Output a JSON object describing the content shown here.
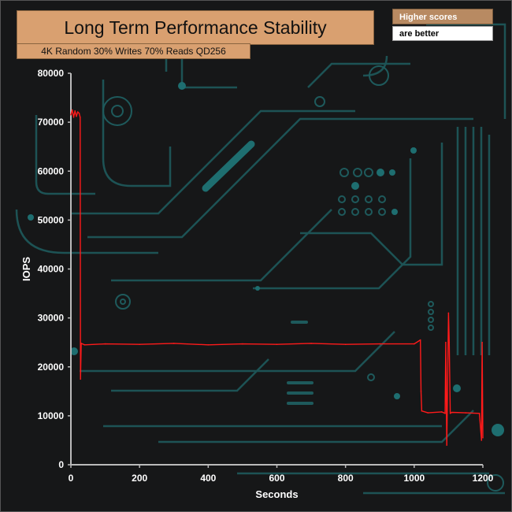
{
  "title": "Long Term Performance Stability",
  "subtitle": "4K Random 30% Writes 70% Reads QD256",
  "note": {
    "line1": "Higher scores",
    "line2": "are better"
  },
  "colors": {
    "series": "#ff1a1a",
    "axis": "#bbbbbb",
    "header_bg": "#d9a070",
    "note_bg": "#b88a62",
    "circuit": "#1e5a5c"
  },
  "chart_data": {
    "type": "line",
    "title": "Long Term Performance Stability",
    "subtitle": "4K Random 30% Writes 70% Reads QD256",
    "xlabel": "Seconds",
    "ylabel": "IOPS",
    "xlim": [
      0,
      1200
    ],
    "ylim": [
      0,
      80000
    ],
    "x_ticks": [
      0,
      200,
      400,
      600,
      800,
      1000,
      1200
    ],
    "y_ticks": [
      0,
      10000,
      20000,
      30000,
      40000,
      50000,
      60000,
      70000,
      80000
    ],
    "grid": false,
    "series": [
      {
        "x": [
          0,
          4,
          8,
          12,
          16,
          20,
          24,
          27,
          28,
          30,
          40,
          100,
          200,
          300,
          400,
          500,
          600,
          700,
          800,
          900,
          1000,
          1018,
          1020,
          1022,
          1040,
          1080,
          1090,
          1092,
          1095,
          1100,
          1102,
          1105,
          1110,
          1150,
          1190,
          1196,
          1198,
          1200
        ],
        "y": [
          71500,
          72500,
          71000,
          72300,
          71200,
          72100,
          71800,
          71000,
          17500,
          24800,
          24500,
          24700,
          24600,
          24800,
          24500,
          24700,
          24600,
          24800,
          24600,
          24700,
          24700,
          25500,
          15000,
          11000,
          10600,
          10800,
          10500,
          25000,
          4000,
          31000,
          25000,
          10500,
          10700,
          10600,
          10500,
          5000,
          25000,
          5500
        ]
      }
    ]
  }
}
